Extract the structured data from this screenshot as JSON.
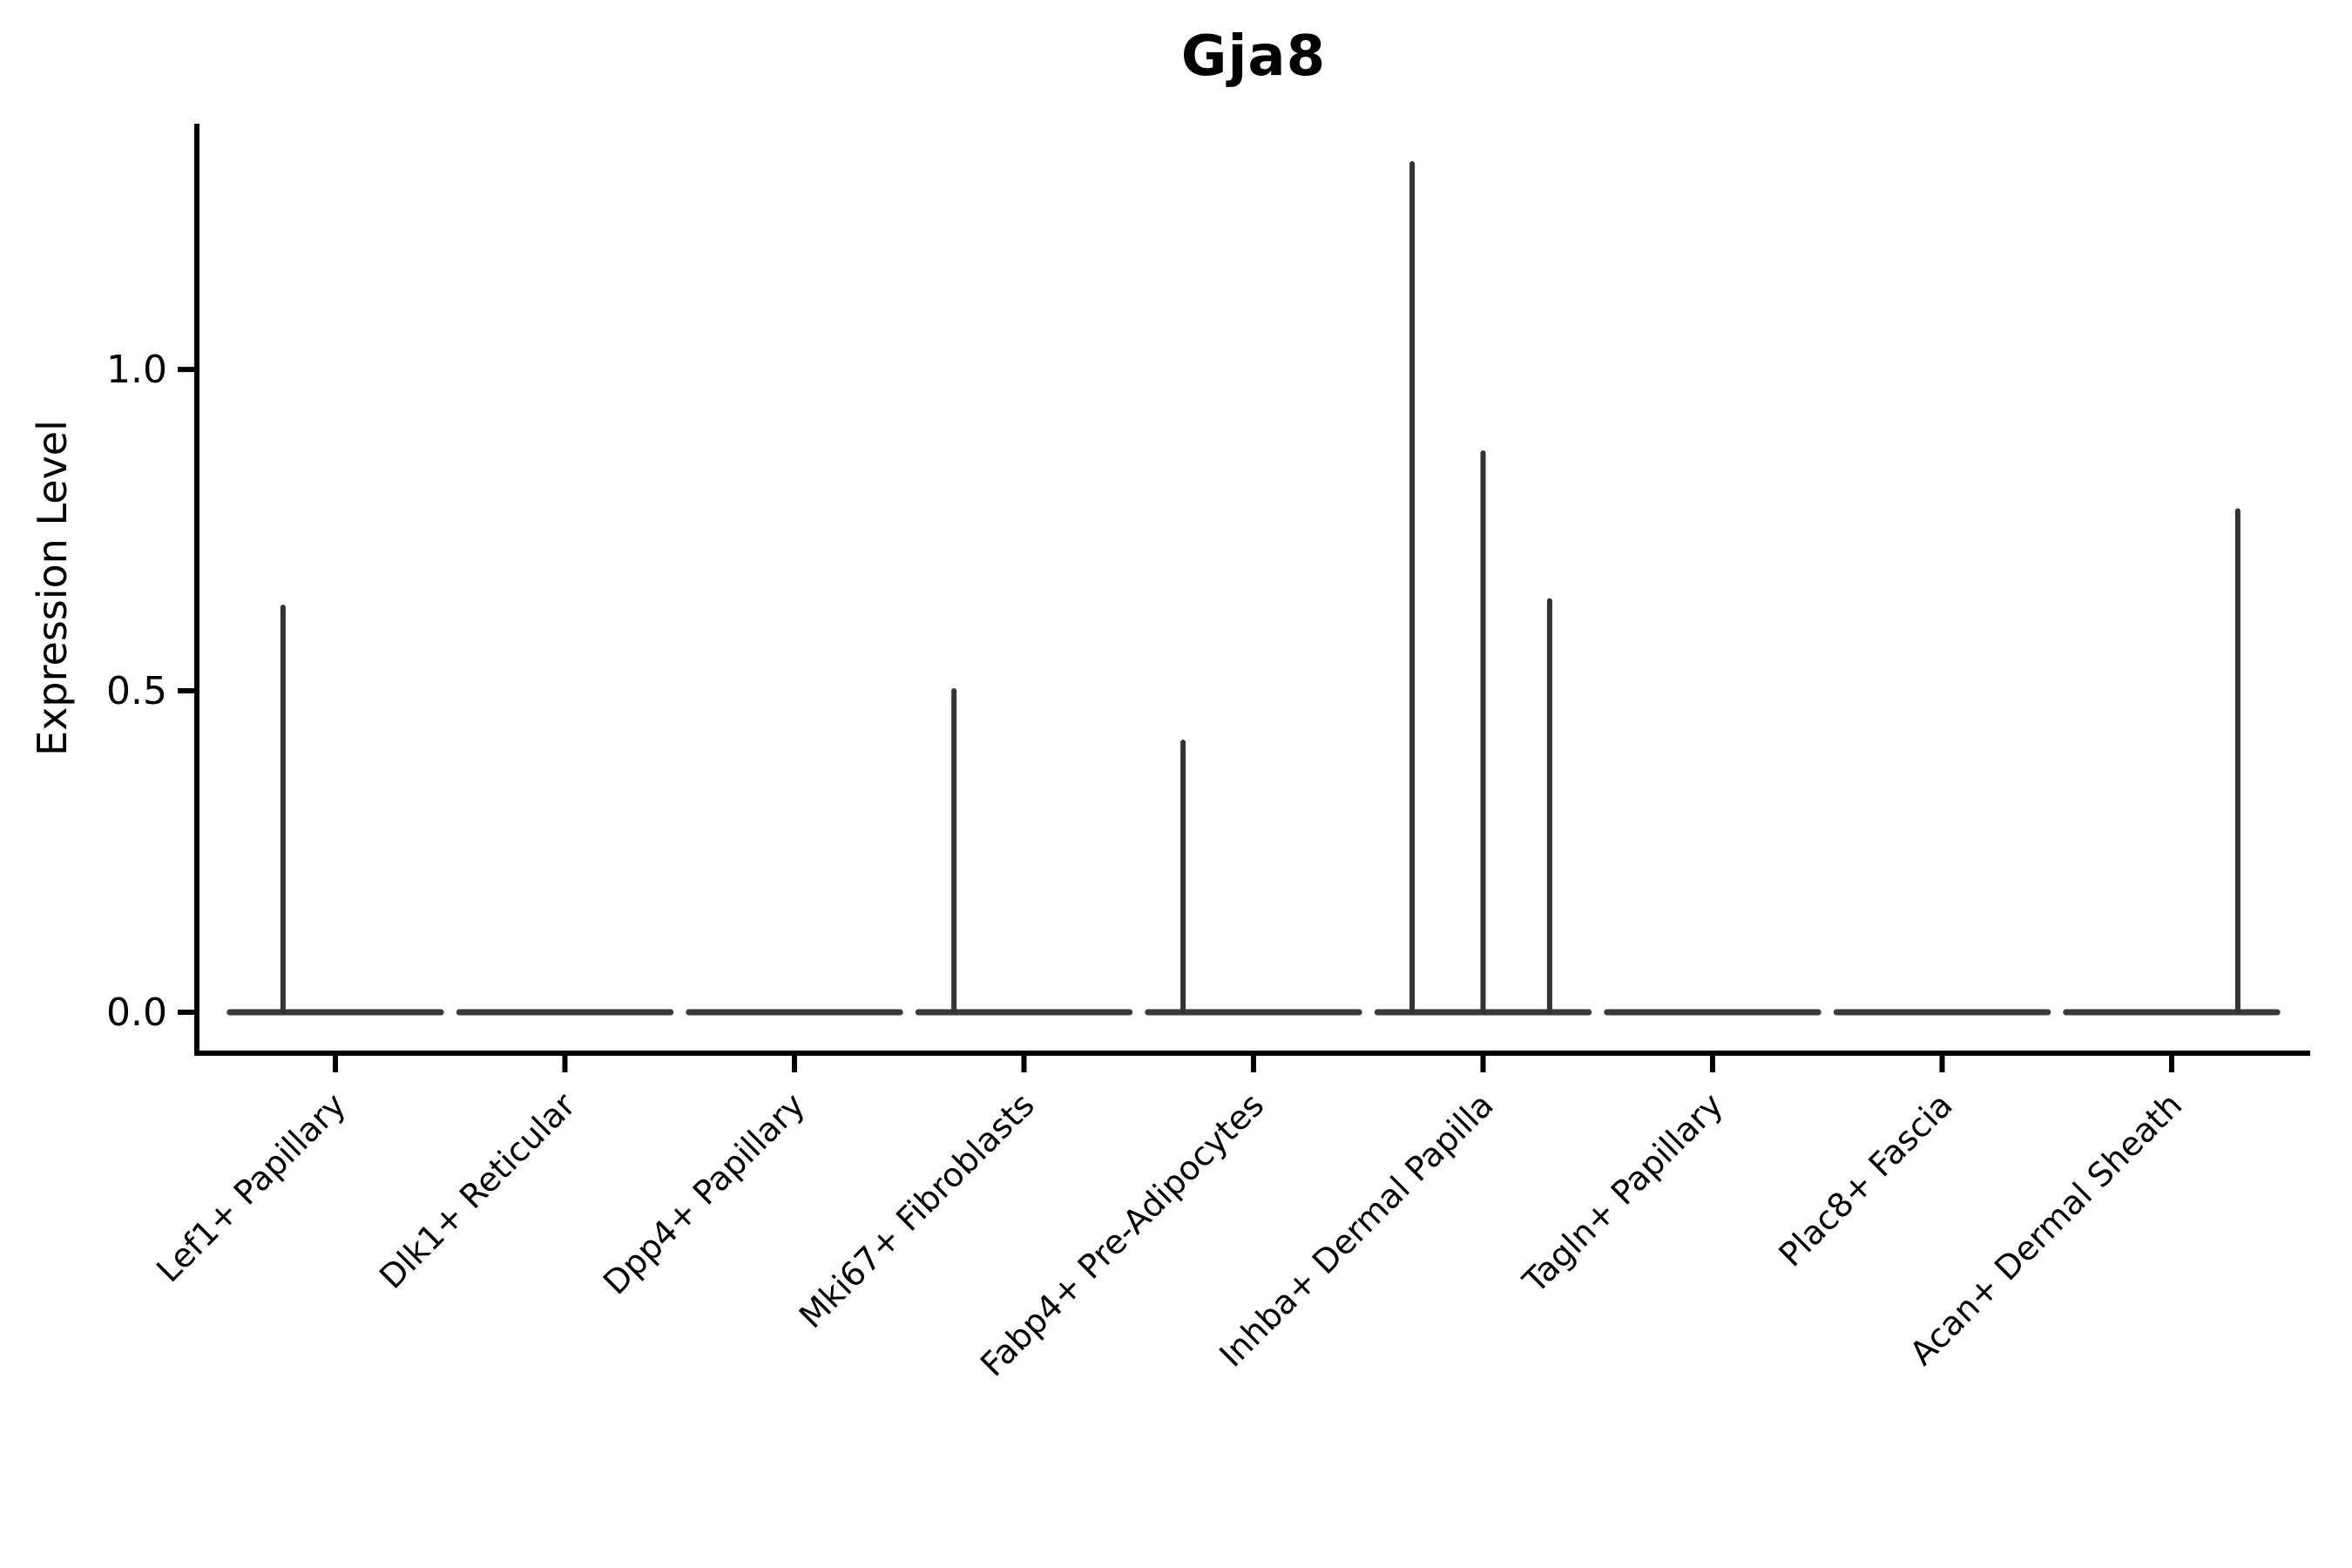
{
  "chart_data": {
    "type": "violin",
    "title": "Gja8",
    "ylabel": "Expression Level",
    "xlabel": "",
    "legend": "none",
    "grid": false,
    "ylim": [
      -0.0637,
      1.3823
    ],
    "yticks": [
      {
        "label": "0.0",
        "value": 0.0
      },
      {
        "label": "0.5",
        "value": 0.5
      },
      {
        "label": "1.0",
        "value": 1.0
      }
    ],
    "categories": [
      "Lef1+ Papillary",
      "Dlk1+ Reticular",
      "Dpp4+ Papillary",
      "Mki67+ Fibroblasts",
      "Fabp4+ Pre-Adipocytes",
      "Inhba+ Dermal Papilla",
      "Tagln+ Papillary",
      "Plac8+ Fascia",
      "Acan+ Dermal Sheath"
    ],
    "violins": [
      {
        "category": "Lef1+ Papillary",
        "baseline_value": 0.0,
        "spikes": [
          {
            "offset": -0.228,
            "value": 0.63
          }
        ]
      },
      {
        "category": "Dlk1+ Reticular",
        "baseline_value": 0.0,
        "spikes": []
      },
      {
        "category": "Dpp4+ Papillary",
        "baseline_value": 0.0,
        "spikes": []
      },
      {
        "category": "Mki67+ Fibroblasts",
        "baseline_value": 0.0,
        "spikes": [
          {
            "offset": -0.305,
            "value": 0.5
          }
        ]
      },
      {
        "category": "Fabp4+ Pre-Adipocytes",
        "baseline_value": 0.0,
        "spikes": [
          {
            "offset": -0.307,
            "value": 0.42
          }
        ]
      },
      {
        "category": "Inhba+ Dermal Papilla",
        "baseline_value": 0.0,
        "spikes": [
          {
            "offset": -0.309,
            "value": 1.32
          },
          {
            "offset": 0.0,
            "value": 0.87
          },
          {
            "offset": 0.29,
            "value": 0.64
          }
        ]
      },
      {
        "category": "Tagln+ Papillary",
        "baseline_value": 0.0,
        "spikes": []
      },
      {
        "category": "Plac8+ Fascia",
        "baseline_value": 0.0,
        "spikes": []
      },
      {
        "category": "Acan+ Dermal Sheath",
        "baseline_value": 0.0,
        "spikes": [
          {
            "offset": 0.288,
            "value": 0.78
          }
        ]
      }
    ],
    "violin_halfwidth": 0.46,
    "colors": {
      "axis": "#000000",
      "text": "#000000",
      "violin_body": "#333333",
      "baseline": "#3a3a3a",
      "background": "#ffffff"
    },
    "layout": {
      "plot_left": 226,
      "plot_top": 142,
      "plot_right": 2652,
      "plot_bottom": 1209,
      "first_center": 385,
      "category_spacing": 263.5,
      "tick_len": 22,
      "spine_width": 6,
      "spike_width": 6,
      "baseline_width": 7
    }
  }
}
